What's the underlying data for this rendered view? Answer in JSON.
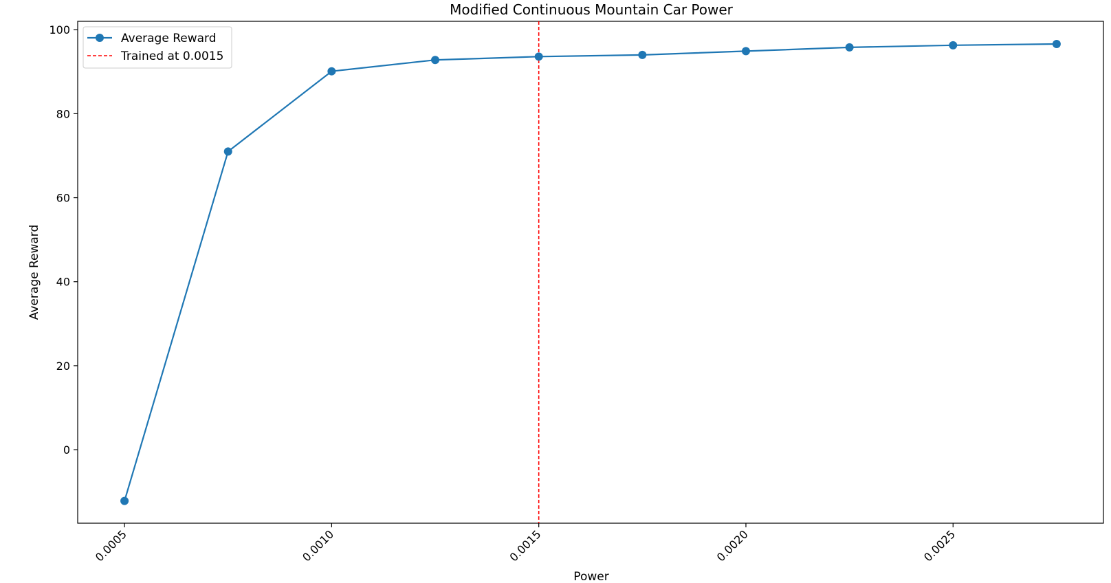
{
  "chart_data": {
    "type": "line",
    "title": "Modified Continuous Mountain Car Power",
    "xlabel": "Power",
    "ylabel": "Average Reward",
    "xlim": [
      0.000387,
      0.002863
    ],
    "ylim": [
      -17.5,
      102
    ],
    "x_ticks": [
      {
        "value": 0.0005,
        "label": "0.0005"
      },
      {
        "value": 0.001,
        "label": "0.0010"
      },
      {
        "value": 0.0015,
        "label": "0.0015"
      },
      {
        "value": 0.002,
        "label": "0.0020"
      },
      {
        "value": 0.0025,
        "label": "0.0025"
      }
    ],
    "y_ticks": [
      {
        "value": 0,
        "label": "0"
      },
      {
        "value": 20,
        "label": "20"
      },
      {
        "value": 40,
        "label": "40"
      },
      {
        "value": 60,
        "label": "60"
      },
      {
        "value": 80,
        "label": "80"
      },
      {
        "value": 100,
        "label": "100"
      }
    ],
    "series": [
      {
        "name": "Average Reward",
        "color": "#1f77b4",
        "marker": "circle",
        "x": [
          0.0005,
          0.00075,
          0.001,
          0.00125,
          0.0015,
          0.00175,
          0.002,
          0.00225,
          0.0025,
          0.00275
        ],
        "y": [
          -12.2,
          71.0,
          90.1,
          92.8,
          93.6,
          94.0,
          94.9,
          95.8,
          96.3,
          96.6
        ]
      }
    ],
    "reference_lines": [
      {
        "name": "Trained at 0.0015",
        "orientation": "vertical",
        "x": 0.0015,
        "color": "#ff0000",
        "style": "dashed"
      }
    ],
    "grid": false,
    "legend_position": "upper-left"
  }
}
